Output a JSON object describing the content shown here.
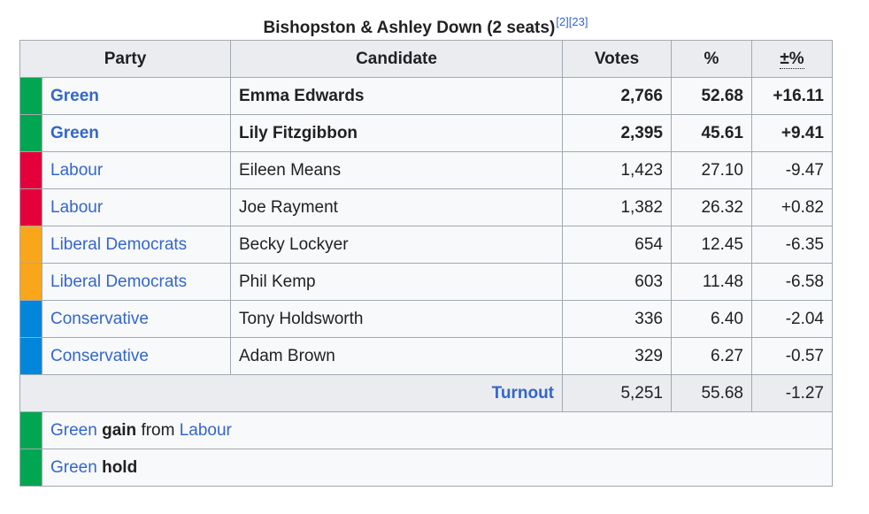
{
  "title": "Bishopston & Ashley Down (2 seats)",
  "refs": [
    "[2]",
    "[23]"
  ],
  "headers": {
    "party": "Party",
    "candidate": "Candidate",
    "votes": "Votes",
    "percent": "%",
    "change": "±%"
  },
  "rows": [
    {
      "party": "Green",
      "candidate": "Emma Edwards",
      "votes": "2,766",
      "percent": "52.68",
      "change": "+16.11",
      "color": "#00a651",
      "elected": true
    },
    {
      "party": "Green",
      "candidate": "Lily Fitzgibbon",
      "votes": "2,395",
      "percent": "45.61",
      "change": "+9.41",
      "color": "#00a651",
      "elected": true
    },
    {
      "party": "Labour",
      "candidate": "Eileen Means",
      "votes": "1,423",
      "percent": "27.10",
      "change": "-9.47",
      "color": "#e4003b",
      "elected": false
    },
    {
      "party": "Labour",
      "candidate": "Joe Rayment",
      "votes": "1,382",
      "percent": "26.32",
      "change": "+0.82",
      "color": "#e4003b",
      "elected": false
    },
    {
      "party": "Liberal Democrats",
      "candidate": "Becky Lockyer",
      "votes": "654",
      "percent": "12.45",
      "change": "-6.35",
      "color": "#faa61a",
      "elected": false
    },
    {
      "party": "Liberal Democrats",
      "candidate": "Phil Kemp",
      "votes": "603",
      "percent": "11.48",
      "change": "-6.58",
      "color": "#faa61a",
      "elected": false
    },
    {
      "party": "Conservative",
      "candidate": "Tony Holdsworth",
      "votes": "336",
      "percent": "6.40",
      "change": "-2.04",
      "color": "#0087dc",
      "elected": false
    },
    {
      "party": "Conservative",
      "candidate": "Adam Brown",
      "votes": "329",
      "percent": "6.27",
      "change": "-0.57",
      "color": "#0087dc",
      "elected": false
    }
  ],
  "turnout": {
    "label": "Turnout",
    "votes": "5,251",
    "percent": "55.68",
    "change": "-1.27"
  },
  "results": [
    {
      "color": "#00a651",
      "party": "Green",
      "verb": "gain",
      "from_word": "from",
      "from_party": "Labour"
    },
    {
      "color": "#00a651",
      "party": "Green",
      "verb": "hold"
    }
  ]
}
